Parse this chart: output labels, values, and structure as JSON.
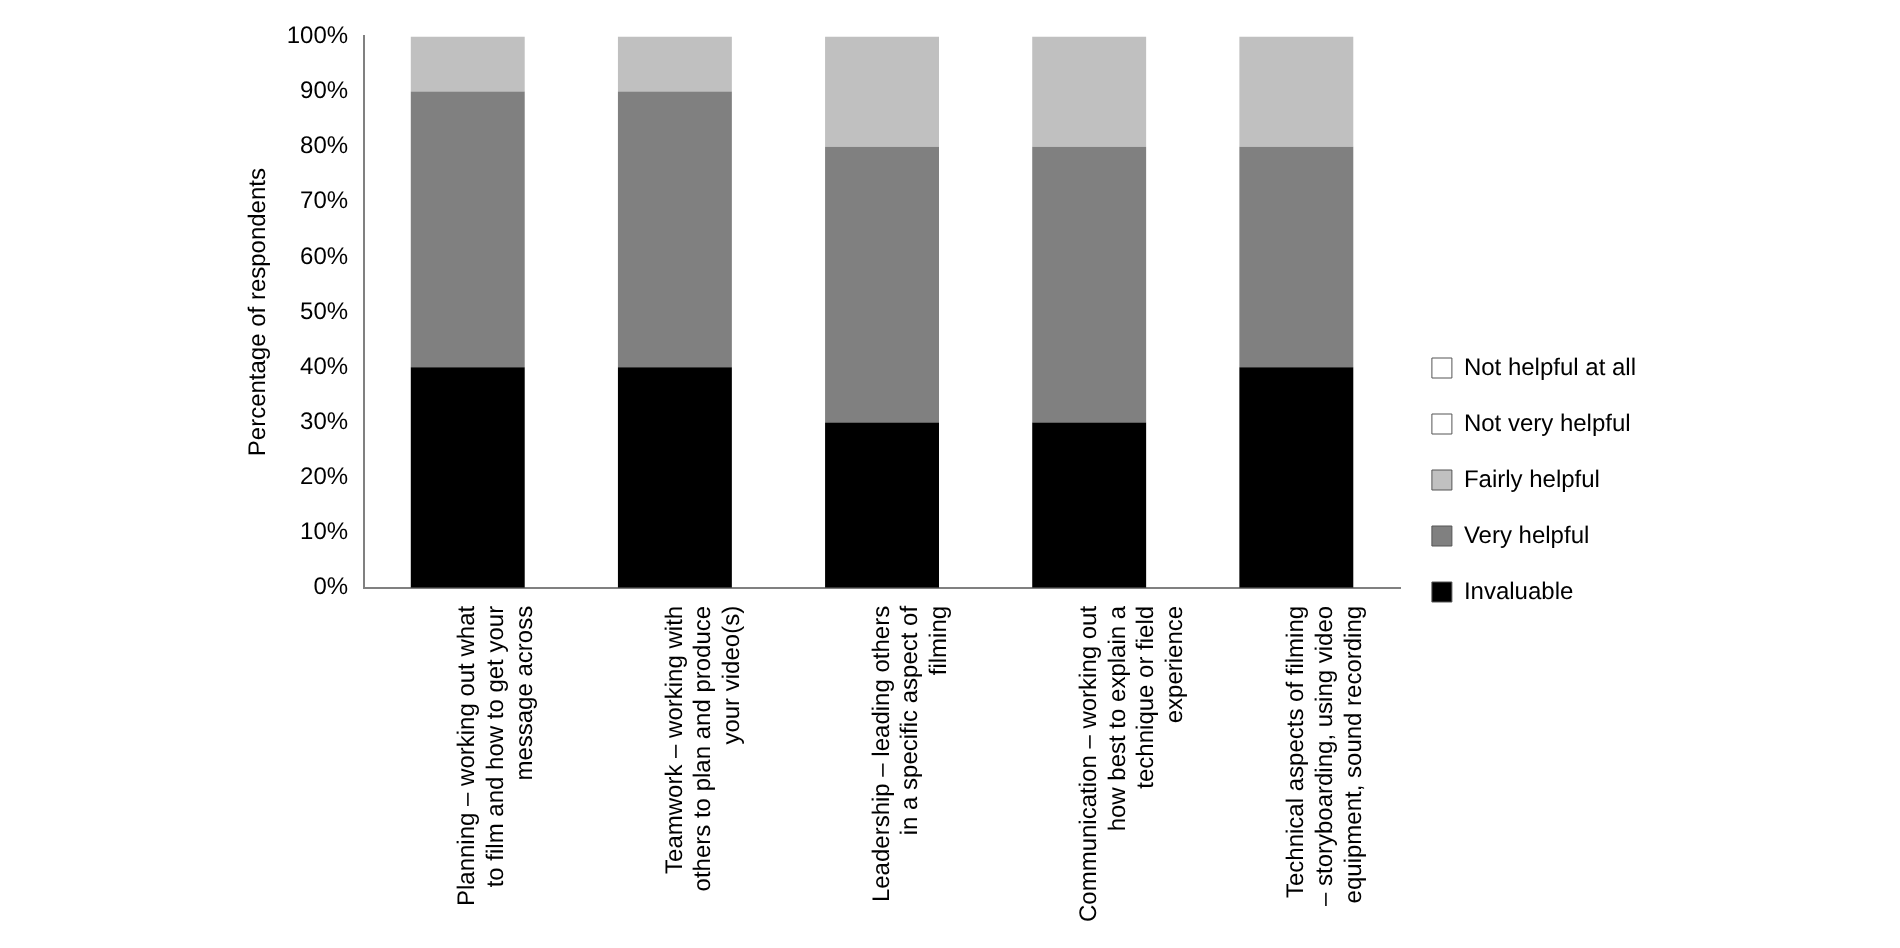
{
  "chart_data": {
    "type": "bar",
    "stacked": true,
    "ylabel": "Percentage of respondents",
    "categories": [
      "Planning – working out what to film and how to get your message across",
      "Teamwork – working with others to plan and produce your video(s)",
      "Leadership – leading others in a specific aspect of filming",
      "Communication – working out how best to explain a technique or field experience",
      "Technical aspects of filming – storyboarding, using video equipment, sound recording"
    ],
    "series": [
      {
        "name": "Invaluable",
        "color": "#000000",
        "values": [
          40,
          40,
          30,
          30,
          40
        ]
      },
      {
        "name": "Very helpful",
        "color": "#808080",
        "values": [
          50,
          50,
          50,
          50,
          40
        ]
      },
      {
        "name": "Fairly helpful",
        "color": "#c0c0c0",
        "values": [
          10,
          10,
          20,
          20,
          20
        ]
      },
      {
        "name": "Not very helpful",
        "color": "#ffffff",
        "values": [
          0,
          0,
          0,
          0,
          0
        ]
      },
      {
        "name": "Not helpful at all",
        "color": "#ffffff",
        "values": [
          0,
          0,
          0,
          0,
          0
        ]
      }
    ],
    "ylim": [
      0,
      100
    ],
    "yticks": [
      {
        "value": 0,
        "label": "0%"
      },
      {
        "value": 10,
        "label": "10%"
      },
      {
        "value": 20,
        "label": "20%"
      },
      {
        "value": 30,
        "label": "30%"
      },
      {
        "value": 40,
        "label": "40%"
      },
      {
        "value": 50,
        "label": "50%"
      },
      {
        "value": 60,
        "label": "60%"
      },
      {
        "value": 70,
        "label": "70%"
      },
      {
        "value": 80,
        "label": "80%"
      },
      {
        "value": 90,
        "label": "90%"
      },
      {
        "value": 100,
        "label": "100%"
      }
    ],
    "grid": false,
    "legend": "right"
  }
}
